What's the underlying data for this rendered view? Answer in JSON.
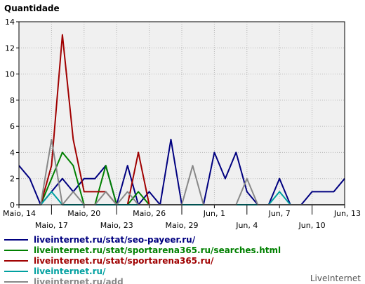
{
  "chart_data": {
    "type": "line",
    "title": "",
    "ylabel": "Quantidade",
    "xlabel": "",
    "ylim": [
      0,
      14
    ],
    "yticks": [
      0,
      2,
      4,
      6,
      8,
      10,
      12,
      14
    ],
    "grid": true,
    "x_tick_labels": [
      "Maio, 14",
      "Maio, 17",
      "Maio, 20",
      "Maio, 23",
      "Maio, 26",
      "Maio, 29",
      "Jun, 1",
      "Jun, 4",
      "Jun, 7",
      "Jun, 10",
      "Jun, 13"
    ],
    "x": [
      "Maio, 14",
      "Maio, 15",
      "Maio, 16",
      "Maio, 17",
      "Maio, 18",
      "Maio, 19",
      "Maio, 20",
      "Maio, 21",
      "Maio, 22",
      "Maio, 23",
      "Maio, 24",
      "Maio, 25",
      "Maio, 26",
      "Maio, 27",
      "Maio, 28",
      "Maio, 29",
      "Maio, 30",
      "Maio, 31",
      "Jun, 1",
      "Jun, 2",
      "Jun, 3",
      "Jun, 4",
      "Jun, 5",
      "Jun, 6",
      "Jun, 7",
      "Jun, 8",
      "Jun, 9",
      "Jun, 10",
      "Jun, 11",
      "Jun, 12",
      "Jun, 13"
    ],
    "series": [
      {
        "name": "liveinternet.ru/stat/seo-payeer.ru/",
        "color": "#000080",
        "values": [
          3,
          2,
          0,
          1,
          2,
          1,
          2,
          2,
          3,
          0,
          3,
          0,
          1,
          0,
          5,
          0,
          0,
          0,
          4,
          2,
          4,
          1,
          0,
          0,
          2,
          0,
          0,
          1,
          1,
          1,
          2
        ]
      },
      {
        "name": "liveinternet.ru/stat/sportarena365.ru/searches.html",
        "color": "#008000",
        "values": [
          0,
          0,
          0,
          2,
          4,
          3,
          0,
          0,
          3,
          0,
          0,
          1,
          0,
          0,
          0,
          0,
          0,
          0,
          0,
          0,
          0,
          0,
          0,
          0,
          0,
          0,
          0,
          0,
          0,
          0,
          0
        ]
      },
      {
        "name": "liveinternet.ru/stat/sportarena365.ru/",
        "color": "#a00000",
        "values": [
          0,
          0,
          0,
          3,
          13,
          5,
          1,
          1,
          1,
          0,
          0,
          4,
          0,
          0,
          0,
          0,
          0,
          0,
          0,
          0,
          0,
          0,
          0,
          0,
          0,
          0,
          0,
          0,
          0,
          0,
          0
        ]
      },
      {
        "name": "liveinternet.ru/",
        "color": "#00a0a0",
        "values": [
          0,
          0,
          0,
          1,
          0,
          0,
          0,
          0,
          0,
          0,
          0,
          0,
          0,
          0,
          0,
          0,
          0,
          0,
          0,
          0,
          0,
          0,
          0,
          0,
          1,
          0,
          0,
          0,
          0,
          0,
          0
        ]
      },
      {
        "name": "liveinternet.ru/add",
        "color": "#888888",
        "values": [
          0,
          0,
          0,
          5,
          0,
          1,
          0,
          0,
          1,
          0,
          1,
          0,
          0,
          0,
          0,
          0,
          3,
          0,
          0,
          0,
          0,
          2,
          0,
          0,
          0,
          0,
          0,
          0,
          0,
          0,
          0
        ]
      }
    ],
    "legend_position": "bottom-left"
  },
  "credit": "LiveInternet"
}
